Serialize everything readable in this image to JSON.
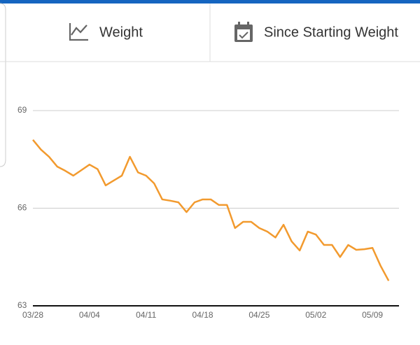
{
  "tabs": [
    "Weight",
    "Since Starting Weight"
  ],
  "chart_data": {
    "type": "line",
    "x": [
      "03/28",
      "03/29",
      "03/30",
      "03/31",
      "04/01",
      "04/02",
      "04/03",
      "04/04",
      "04/05",
      "04/06",
      "04/07",
      "04/08",
      "04/09",
      "04/10",
      "04/11",
      "04/12",
      "04/13",
      "04/14",
      "04/15",
      "04/16",
      "04/17",
      "04/18",
      "04/19",
      "04/20",
      "04/21",
      "04/22",
      "04/23",
      "04/24",
      "04/25",
      "04/26",
      "04/27",
      "04/28",
      "04/29",
      "04/30",
      "05/01",
      "05/02",
      "05/03",
      "05/04",
      "05/05",
      "05/06",
      "05/07",
      "05/08",
      "05/09",
      "05/10",
      "05/11"
    ],
    "values": [
      68.1,
      67.8,
      67.58,
      67.28,
      67.15,
      67.0,
      67.17,
      67.34,
      67.2,
      66.7,
      66.85,
      67.0,
      67.58,
      67.1,
      67.0,
      66.76,
      66.27,
      66.23,
      66.18,
      65.88,
      66.18,
      66.27,
      66.27,
      66.1,
      66.1,
      65.39,
      65.58,
      65.58,
      65.39,
      65.28,
      65.1,
      65.49,
      64.98,
      64.7,
      65.28,
      65.19,
      64.87,
      64.87,
      64.5,
      64.87,
      64.72,
      64.74,
      64.78,
      64.23,
      63.77
    ],
    "color": "#f29a2e",
    "ylim": [
      63,
      69
    ],
    "yticks": [
      63,
      66,
      69
    ],
    "xticks": [
      "03/28",
      "04/04",
      "04/11",
      "04/18",
      "04/25",
      "05/02",
      "05/09"
    ],
    "grid": true
  }
}
